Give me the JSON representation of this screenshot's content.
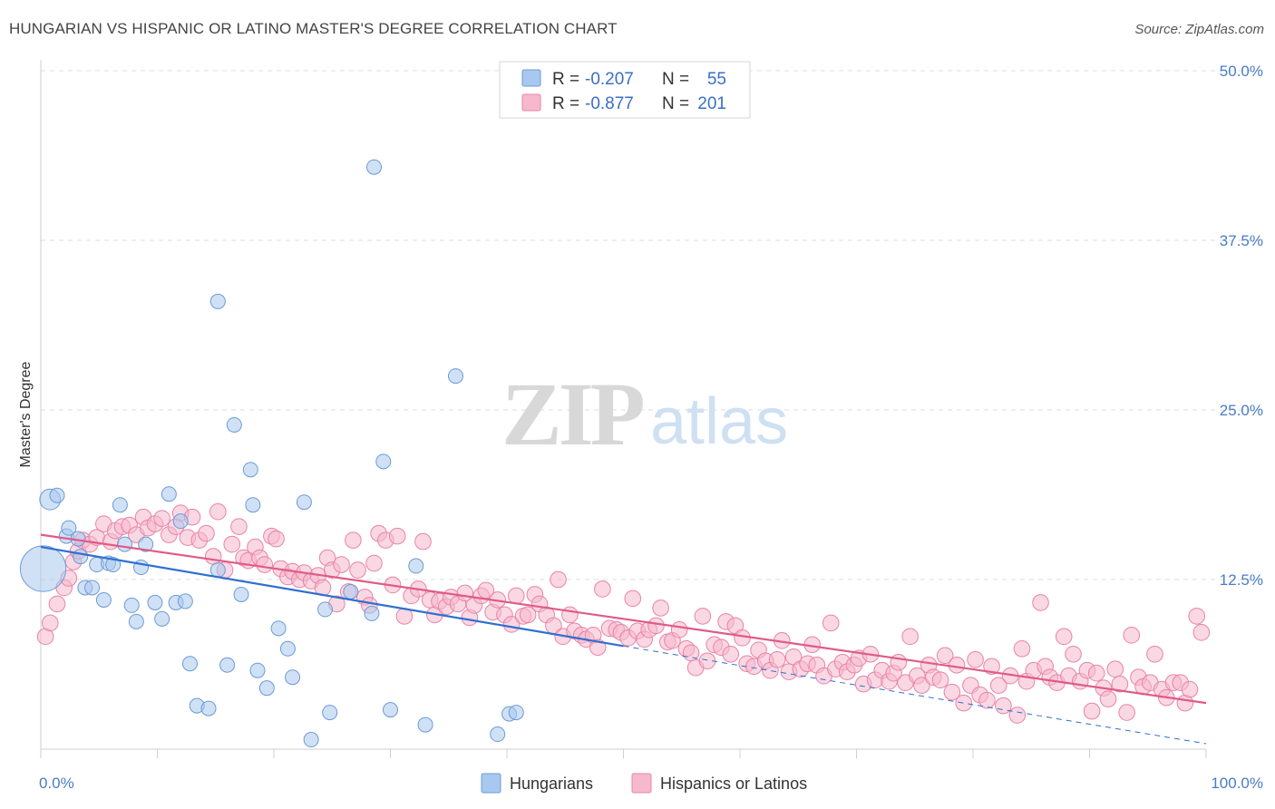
{
  "title": "HUNGARIAN VS HISPANIC OR LATINO MASTER'S DEGREE CORRELATION CHART",
  "source": "Source: ZipAtlas.com",
  "watermark": {
    "zip": "ZIP",
    "atlas": "atlas"
  },
  "legend_top": {
    "rows": [
      {
        "r_label": "R =",
        "r_value": "-0.207",
        "n_label": "N =",
        "n_value": "55",
        "color": "#a9c8ef",
        "stroke": "#6b9bd6"
      },
      {
        "r_label": "R =",
        "r_value": "-0.877",
        "n_label": "N =",
        "n_value": "201",
        "color": "#f6b8cc",
        "stroke": "#e983a6"
      }
    ]
  },
  "legend_bottom": [
    {
      "label": "Hungarians",
      "color": "#a9c8ef",
      "stroke": "#6b9bd6"
    },
    {
      "label": "Hispanics or Latinos",
      "color": "#f6b8cc",
      "stroke": "#e983a6"
    }
  ],
  "chart_data": {
    "type": "scatter",
    "ylabel": "Master's Degree",
    "xlim": [
      0,
      100
    ],
    "ylim": [
      0,
      50
    ],
    "x_tick_labels": [
      "0.0%",
      "100.0%"
    ],
    "y_tick_labels": [
      "12.5%",
      "25.0%",
      "37.5%",
      "50.0%"
    ],
    "y_ticks": [
      12.5,
      25.0,
      37.5,
      50.0
    ],
    "grid": true,
    "series": [
      {
        "name": "Hungarians",
        "color": "#a9c8ef",
        "stroke": "#6b9bd6",
        "line_color": "#2f6fd0",
        "trend": {
          "x0": 0,
          "y0": 14.9,
          "x1": 50,
          "y1": 7.6,
          "dash_to": 100,
          "dash_y": 0.4
        },
        "points": [
          [
            0.2,
            13.3,
            2.2
          ],
          [
            0.8,
            18.4,
            1.0
          ],
          [
            1.4,
            18.7,
            0.7
          ],
          [
            2.2,
            15.7,
            0.7
          ],
          [
            2.4,
            16.3,
            0.7
          ],
          [
            3.2,
            15.5,
            0.7
          ],
          [
            3.4,
            14.2,
            0.7
          ],
          [
            3.8,
            11.9,
            0.7
          ],
          [
            4.4,
            11.9,
            0.7
          ],
          [
            4.8,
            13.6,
            0.7
          ],
          [
            5.4,
            11.0,
            0.7
          ],
          [
            5.8,
            13.7,
            0.7
          ],
          [
            6.2,
            13.6,
            0.7
          ],
          [
            6.8,
            18.0,
            0.7
          ],
          [
            7.2,
            15.1,
            0.7
          ],
          [
            7.8,
            10.6,
            0.7
          ],
          [
            8.2,
            9.4,
            0.7
          ],
          [
            8.6,
            13.4,
            0.7
          ],
          [
            9.0,
            15.1,
            0.7
          ],
          [
            9.8,
            10.8,
            0.7
          ],
          [
            10.4,
            9.6,
            0.7
          ],
          [
            11.0,
            18.8,
            0.7
          ],
          [
            11.6,
            10.8,
            0.7
          ],
          [
            12.0,
            16.8,
            0.7
          ],
          [
            12.4,
            10.9,
            0.7
          ],
          [
            12.8,
            6.3,
            0.7
          ],
          [
            13.4,
            3.2,
            0.7
          ],
          [
            14.4,
            3.0,
            0.7
          ],
          [
            15.2,
            13.2,
            0.7
          ],
          [
            15.2,
            33.0,
            0.7
          ],
          [
            16.0,
            6.2,
            0.7
          ],
          [
            16.6,
            23.9,
            0.7
          ],
          [
            17.2,
            11.4,
            0.7
          ],
          [
            18.0,
            20.6,
            0.7
          ],
          [
            18.2,
            18.0,
            0.7
          ],
          [
            18.6,
            5.8,
            0.7
          ],
          [
            19.4,
            4.5,
            0.7
          ],
          [
            20.4,
            8.9,
            0.7
          ],
          [
            21.2,
            7.4,
            0.7
          ],
          [
            21.6,
            5.3,
            0.7
          ],
          [
            22.6,
            18.2,
            0.7
          ],
          [
            23.2,
            0.7,
            0.7
          ],
          [
            24.4,
            10.3,
            0.7
          ],
          [
            24.8,
            2.7,
            0.7
          ],
          [
            26.6,
            11.6,
            0.7
          ],
          [
            28.4,
            10.0,
            0.7
          ],
          [
            28.6,
            42.9,
            0.7
          ],
          [
            29.4,
            21.2,
            0.7
          ],
          [
            30.0,
            2.9,
            0.7
          ],
          [
            32.2,
            13.5,
            0.7
          ],
          [
            33.0,
            1.8,
            0.7
          ],
          [
            35.6,
            27.5,
            0.7
          ],
          [
            39.2,
            1.1,
            0.7
          ],
          [
            40.2,
            2.6,
            0.7
          ],
          [
            40.8,
            2.7,
            0.7
          ]
        ]
      },
      {
        "name": "Hispanics or Latinos",
        "color": "#f6b8cc",
        "stroke": "#e983a6",
        "line_color": "#e05a8a",
        "trend": {
          "x0": 0,
          "y0": 15.8,
          "x1": 100,
          "y1": 3.4
        },
        "points": [
          [
            0.4,
            8.3
          ],
          [
            0.8,
            9.3
          ],
          [
            1.4,
            10.7
          ],
          [
            2.0,
            11.9
          ],
          [
            2.4,
            12.6
          ],
          [
            2.8,
            13.8
          ],
          [
            3.2,
            14.6
          ],
          [
            3.6,
            15.4
          ],
          [
            4.2,
            15.1
          ],
          [
            4.8,
            15.6
          ],
          [
            5.4,
            16.6
          ],
          [
            6.0,
            15.3
          ],
          [
            6.4,
            16.1
          ],
          [
            7.0,
            16.4
          ],
          [
            7.6,
            16.5
          ],
          [
            8.2,
            15.8
          ],
          [
            8.8,
            17.1
          ],
          [
            9.2,
            16.3
          ],
          [
            9.8,
            16.6
          ],
          [
            10.4,
            17.0
          ],
          [
            11.0,
            15.8
          ],
          [
            11.6,
            16.4
          ],
          [
            12.0,
            17.4
          ],
          [
            12.6,
            15.6
          ],
          [
            13.0,
            17.1
          ],
          [
            13.6,
            15.4
          ],
          [
            14.2,
            15.9
          ],
          [
            14.8,
            14.2
          ],
          [
            15.2,
            17.5
          ],
          [
            15.8,
            13.2
          ],
          [
            16.4,
            15.1
          ],
          [
            17.0,
            16.4
          ],
          [
            17.4,
            14.1
          ],
          [
            17.8,
            13.9
          ],
          [
            18.4,
            14.9
          ],
          [
            18.8,
            14.1
          ],
          [
            19.2,
            13.6
          ],
          [
            19.8,
            15.7
          ],
          [
            20.2,
            15.5
          ],
          [
            20.6,
            13.3
          ],
          [
            21.2,
            12.7
          ],
          [
            21.6,
            13.1
          ],
          [
            22.2,
            12.5
          ],
          [
            22.6,
            13.0
          ],
          [
            23.2,
            12.4
          ],
          [
            23.8,
            12.8
          ],
          [
            24.2,
            11.9
          ],
          [
            24.6,
            14.1
          ],
          [
            25.0,
            13.2
          ],
          [
            25.4,
            10.7
          ],
          [
            25.8,
            13.6
          ],
          [
            26.4,
            11.6
          ],
          [
            26.8,
            15.4
          ],
          [
            27.2,
            13.2
          ],
          [
            27.8,
            11.2
          ],
          [
            28.2,
            10.6
          ],
          [
            28.6,
            13.7
          ],
          [
            29.0,
            15.9
          ],
          [
            29.6,
            15.4
          ],
          [
            30.2,
            12.1
          ],
          [
            30.6,
            15.7
          ],
          [
            31.2,
            9.8
          ],
          [
            31.8,
            11.3
          ],
          [
            32.4,
            11.8
          ],
          [
            32.8,
            15.3
          ],
          [
            33.4,
            11.0
          ],
          [
            33.8,
            9.9
          ],
          [
            34.2,
            10.9
          ],
          [
            34.8,
            10.5
          ],
          [
            35.2,
            11.2
          ],
          [
            35.8,
            10.7
          ],
          [
            36.4,
            11.5
          ],
          [
            36.8,
            9.7
          ],
          [
            37.2,
            10.6
          ],
          [
            37.8,
            11.3
          ],
          [
            38.2,
            11.7
          ],
          [
            38.8,
            10.1
          ],
          [
            39.2,
            11.0
          ],
          [
            39.8,
            9.9
          ],
          [
            40.4,
            9.2
          ],
          [
            40.8,
            11.3
          ],
          [
            41.4,
            9.8
          ],
          [
            41.8,
            9.9
          ],
          [
            42.4,
            11.4
          ],
          [
            42.8,
            10.7
          ],
          [
            43.4,
            9.9
          ],
          [
            44.0,
            9.1
          ],
          [
            44.4,
            12.5
          ],
          [
            44.8,
            8.3
          ],
          [
            45.4,
            9.9
          ],
          [
            45.8,
            8.7
          ],
          [
            46.4,
            8.4
          ],
          [
            46.8,
            8.1
          ],
          [
            47.4,
            8.4
          ],
          [
            47.8,
            7.5
          ],
          [
            48.2,
            11.8
          ],
          [
            48.8,
            8.9
          ],
          [
            49.4,
            8.8
          ],
          [
            49.8,
            8.6
          ],
          [
            50.4,
            8.2
          ],
          [
            50.8,
            11.1
          ],
          [
            51.2,
            8.7
          ],
          [
            51.8,
            8.1
          ],
          [
            52.2,
            8.8
          ],
          [
            52.8,
            9.1
          ],
          [
            53.2,
            10.4
          ],
          [
            53.8,
            7.9
          ],
          [
            54.2,
            8.0
          ],
          [
            54.8,
            8.8
          ],
          [
            55.4,
            7.4
          ],
          [
            55.8,
            7.1
          ],
          [
            56.2,
            6.0
          ],
          [
            56.8,
            9.8
          ],
          [
            57.2,
            6.5
          ],
          [
            57.8,
            7.7
          ],
          [
            58.4,
            7.5
          ],
          [
            58.8,
            9.4
          ],
          [
            59.2,
            7.0
          ],
          [
            59.6,
            9.1
          ],
          [
            60.2,
            8.2
          ],
          [
            60.6,
            6.3
          ],
          [
            61.2,
            6.1
          ],
          [
            61.6,
            7.3
          ],
          [
            62.2,
            6.5
          ],
          [
            62.6,
            5.8
          ],
          [
            63.2,
            6.6
          ],
          [
            63.6,
            8.0
          ],
          [
            64.2,
            5.7
          ],
          [
            64.6,
            6.8
          ],
          [
            65.2,
            5.9
          ],
          [
            65.8,
            6.3
          ],
          [
            66.2,
            7.7
          ],
          [
            66.6,
            6.2
          ],
          [
            67.2,
            5.4
          ],
          [
            67.8,
            9.3
          ],
          [
            68.2,
            5.9
          ],
          [
            68.8,
            6.4
          ],
          [
            69.2,
            5.7
          ],
          [
            69.8,
            6.2
          ],
          [
            70.2,
            6.7
          ],
          [
            70.6,
            4.8
          ],
          [
            71.2,
            7.0
          ],
          [
            71.6,
            5.1
          ],
          [
            72.2,
            5.8
          ],
          [
            72.8,
            5.0
          ],
          [
            73.2,
            5.6
          ],
          [
            73.6,
            6.4
          ],
          [
            74.2,
            4.9
          ],
          [
            74.6,
            8.3
          ],
          [
            75.2,
            5.4
          ],
          [
            75.6,
            4.7
          ],
          [
            76.2,
            6.2
          ],
          [
            76.6,
            5.3
          ],
          [
            77.2,
            5.1
          ],
          [
            77.6,
            6.9
          ],
          [
            78.2,
            4.2
          ],
          [
            78.6,
            6.2
          ],
          [
            79.2,
            3.4
          ],
          [
            79.8,
            4.7
          ],
          [
            80.2,
            6.6
          ],
          [
            80.6,
            4.0
          ],
          [
            81.2,
            3.6
          ],
          [
            81.6,
            6.1
          ],
          [
            82.2,
            4.7
          ],
          [
            82.6,
            3.2
          ],
          [
            83.2,
            5.4
          ],
          [
            83.8,
            2.5
          ],
          [
            84.2,
            7.4
          ],
          [
            84.6,
            5.0
          ],
          [
            85.2,
            5.8
          ],
          [
            85.8,
            10.8
          ],
          [
            86.2,
            6.1
          ],
          [
            86.6,
            5.3
          ],
          [
            87.2,
            4.9
          ],
          [
            87.8,
            8.3
          ],
          [
            88.2,
            5.4
          ],
          [
            88.6,
            7.0
          ],
          [
            89.2,
            5.0
          ],
          [
            89.8,
            5.8
          ],
          [
            90.2,
            2.8
          ],
          [
            90.6,
            5.6
          ],
          [
            91.2,
            4.5
          ],
          [
            91.6,
            3.7
          ],
          [
            92.2,
            5.9
          ],
          [
            92.6,
            4.8
          ],
          [
            93.2,
            2.7
          ],
          [
            93.6,
            8.4
          ],
          [
            94.2,
            5.3
          ],
          [
            94.6,
            4.6
          ],
          [
            95.2,
            4.9
          ],
          [
            95.6,
            7.0
          ],
          [
            96.2,
            4.4
          ],
          [
            96.6,
            3.8
          ],
          [
            97.2,
            4.9
          ],
          [
            97.8,
            4.9
          ],
          [
            98.2,
            3.4
          ],
          [
            98.6,
            4.4
          ],
          [
            99.2,
            9.8
          ],
          [
            99.6,
            8.6
          ]
        ]
      }
    ]
  }
}
